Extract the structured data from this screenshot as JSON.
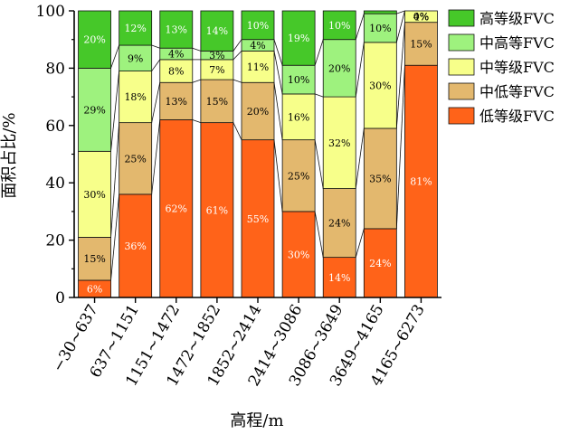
{
  "chart_data": {
    "type": "bar",
    "stacked": true,
    "title": "",
    "xlabel": "高程/m",
    "ylabel": "面积占比/%",
    "ylim": [
      0,
      100
    ],
    "yticks": [
      "0",
      "20",
      "40",
      "60",
      "80",
      "100"
    ],
    "categories": [
      "−30~637",
      "637~1151",
      "1151~1472",
      "1472~1852",
      "1852~2414",
      "2414~3086",
      "3086~3649",
      "3649~4165",
      "4165~6273"
    ],
    "legend_position": "right",
    "series": [
      {
        "name": "低等级FVC",
        "color": "#FF6319",
        "values": [
          6,
          36,
          62,
          61,
          55,
          30,
          14,
          24,
          81
        ],
        "labels": [
          "6%",
          "36%",
          "62%",
          "61%",
          "55%",
          "30%",
          "14%",
          "24%",
          "81%"
        ]
      },
      {
        "name": "中低等FVC",
        "color": "#E3B86E",
        "values": [
          15,
          25,
          13,
          15,
          20,
          25,
          24,
          35,
          15
        ],
        "labels": [
          "15%",
          "25%",
          "13%",
          "15%",
          "20%",
          "25%",
          "24%",
          "35%",
          "15%"
        ]
      },
      {
        "name": "中等级FVC",
        "color": "#F7FF8A",
        "values": [
          30,
          18,
          8,
          7,
          11,
          16,
          32,
          30,
          4
        ],
        "labels": [
          "30%",
          "18%",
          "8%",
          "7%",
          "11%",
          "16%",
          "32%",
          "30%",
          "4%"
        ]
      },
      {
        "name": "中高等FVC",
        "color": "#9EF27E",
        "values": [
          29,
          9,
          4,
          3,
          4,
          10,
          20,
          10,
          0
        ],
        "labels": [
          "29%",
          "9%",
          "4%",
          "3%",
          "4%",
          "10%",
          "20%",
          "10%",
          "0%"
        ]
      },
      {
        "name": "高等级FVC",
        "color": "#46C829",
        "values": [
          20,
          12,
          13,
          14,
          10,
          19,
          10,
          1,
          0
        ],
        "labels": [
          "20%",
          "12%",
          "13%",
          "14%",
          "10%",
          "19%",
          "10%",
          "1%",
          ""
        ]
      }
    ]
  }
}
